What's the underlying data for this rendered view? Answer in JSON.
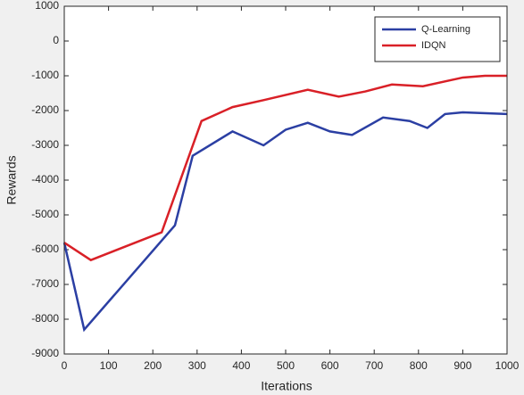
{
  "chart_data": {
    "type": "line",
    "xlabel": "Iterations",
    "ylabel": "Rewards",
    "xlim": [
      0,
      1000
    ],
    "ylim": [
      -9000,
      1000
    ],
    "xticks": [
      0,
      100,
      200,
      300,
      400,
      500,
      600,
      700,
      800,
      900,
      1000
    ],
    "yticks": [
      1000,
      0,
      -1000,
      -2000,
      -3000,
      -4000,
      -5000,
      -6000,
      -7000,
      -8000,
      -9000
    ],
    "legend": "upper-right",
    "series": [
      {
        "name": "Q-Learning",
        "color": "#2b3fa3",
        "x": [
          0,
          45,
          250,
          290,
          380,
          450,
          500,
          550,
          600,
          650,
          720,
          780,
          820,
          860,
          900,
          1000
        ],
        "values": [
          -5800,
          -8300,
          -5300,
          -3300,
          -2600,
          -3000,
          -2550,
          -2350,
          -2600,
          -2700,
          -2200,
          -2300,
          -2500,
          -2100,
          -2050,
          -2100
        ]
      },
      {
        "name": "IDQN",
        "color": "#d92027",
        "x": [
          0,
          60,
          220,
          310,
          380,
          450,
          550,
          620,
          680,
          740,
          810,
          900,
          950,
          1000
        ],
        "values": [
          -5800,
          -6300,
          -5500,
          -2300,
          -1900,
          -1700,
          -1400,
          -1600,
          -1450,
          -1250,
          -1300,
          -1050,
          -1000,
          -1000
        ]
      }
    ]
  }
}
